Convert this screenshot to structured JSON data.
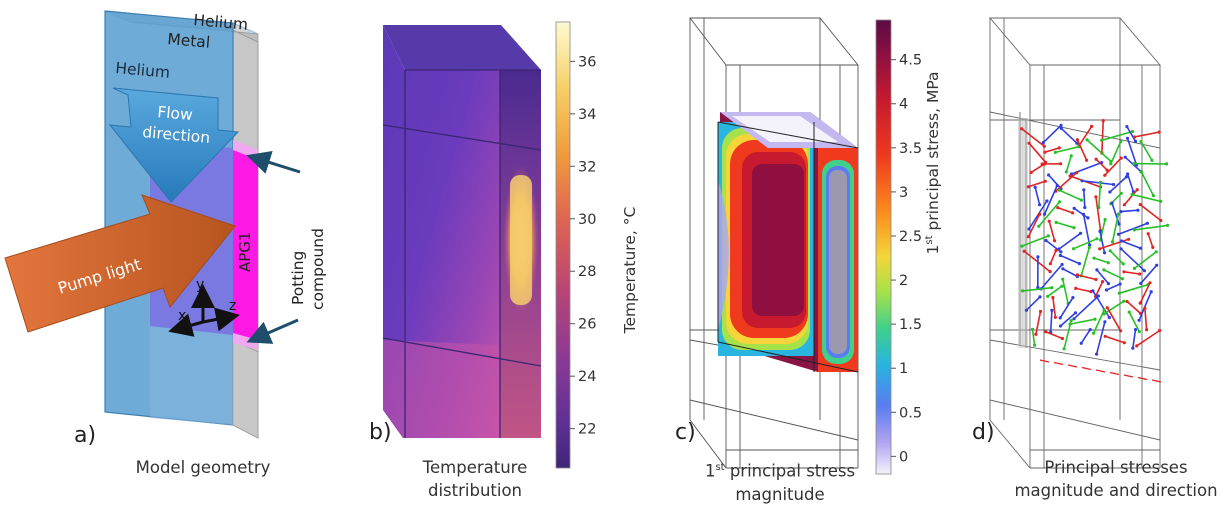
{
  "panels": {
    "a": {
      "letter": "a)",
      "caption": "Model geometry",
      "labels": {
        "helium_top": "Helium",
        "metal": "Metal",
        "helium_left": "Helium",
        "flow_line1": "Flow",
        "flow_line2": "direction",
        "pump": "Pump light",
        "crystal": "APG1",
        "potting_line1": "Potting",
        "potting_line2": "compound",
        "axis_x": "x",
        "axis_y": "y",
        "axis_z": "z"
      }
    },
    "b": {
      "letter": "b)",
      "caption_line1": "Temperature",
      "caption_line2": "distribution"
    },
    "c": {
      "letter": "c)",
      "caption_line1_prefix": "1",
      "caption_line1_sup": "st",
      "caption_line1_suffix": " principal stress",
      "caption_line2": "magnitude"
    },
    "d": {
      "letter": "d)",
      "caption_line1": "Principal stresses",
      "caption_line2": "magnitude and direction"
    }
  },
  "colorbars": {
    "temperature": {
      "label": "Temperature, °C",
      "ticks": [
        "36",
        "34",
        "32",
        "30",
        "28",
        "26",
        "24",
        "22"
      ],
      "range": [
        20.5,
        37.5
      ],
      "colors": [
        "#fdfac8",
        "#f5c25a",
        "#e9843c",
        "#d55a5e",
        "#a9417e",
        "#7b3a9e",
        "#4e2a86"
      ]
    },
    "stress": {
      "label_prefix": "1",
      "label_sup": "st",
      "label_suffix": " principal stress, MPa",
      "ticks": [
        "4.5",
        "4",
        "3.5",
        "3",
        "2.5",
        "2",
        "1.5",
        "1",
        "0.5",
        "0"
      ],
      "range": [
        -0.2,
        4.95
      ],
      "colors": [
        "#6c0e48",
        "#a3153c",
        "#d71e28",
        "#f0481e",
        "#fb8c1e",
        "#f5d83a",
        "#a6e24a",
        "#41d08c",
        "#2ab5e0",
        "#4f7ff0",
        "#a49cf0",
        "#eeeafa"
      ]
    }
  },
  "colors": {
    "helium_blue": "#5b9fd2",
    "metal_grey": "#c9c9c9",
    "apg_magenta": "#ff19e4",
    "flow_arrow": "#2f8fd0",
    "pump_arrow": "#d8612a",
    "vector_red": "#e02525",
    "vector_green": "#28c028",
    "vector_blue": "#3040e0"
  }
}
